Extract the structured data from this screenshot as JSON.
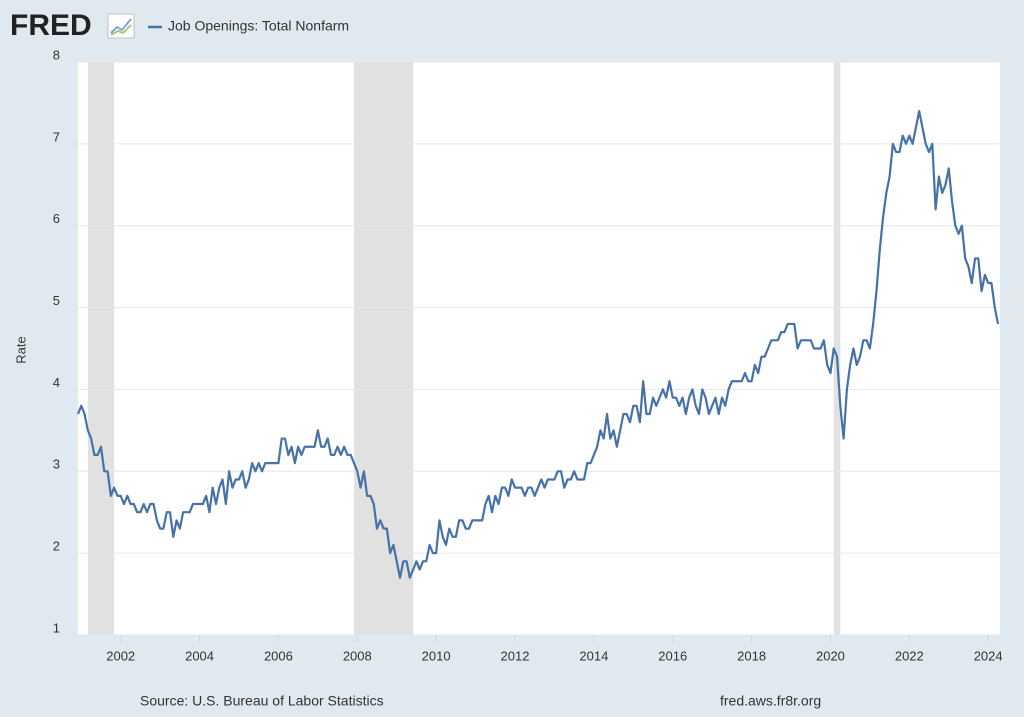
{
  "chart_data": {
    "type": "line",
    "logo": "FRED",
    "ylabel": "Rate",
    "source": "Source: U.S. Bureau of Labor Statistics",
    "site": "fred.aws.fr8r.org",
    "xlim": [
      2000.917,
      2024.3
    ],
    "xticks": [
      2002,
      2004,
      2006,
      2008,
      2010,
      2012,
      2014,
      2016,
      2018,
      2020,
      2022,
      2024
    ],
    "ylim": [
      1,
      8
    ],
    "yticks": [
      1,
      2,
      3,
      4,
      5,
      6,
      7,
      8
    ],
    "grid": true,
    "recession_color": "#e1e1e1",
    "recessions": [
      [
        2001.167,
        2001.833
      ],
      [
        2007.917,
        2009.417
      ],
      [
        2020.083,
        2020.25
      ]
    ],
    "x": [
      2000.917,
      2001,
      2001.083,
      2001.167,
      2001.25,
      2001.333,
      2001.417,
      2001.5,
      2001.583,
      2001.667,
      2001.75,
      2001.833,
      2001.917,
      2002,
      2002.083,
      2002.167,
      2002.25,
      2002.333,
      2002.417,
      2002.5,
      2002.583,
      2002.667,
      2002.75,
      2002.833,
      2002.917,
      2003,
      2003.083,
      2003.167,
      2003.25,
      2003.333,
      2003.417,
      2003.5,
      2003.583,
      2003.667,
      2003.75,
      2003.833,
      2003.917,
      2004,
      2004.083,
      2004.167,
      2004.25,
      2004.333,
      2004.417,
      2004.5,
      2004.583,
      2004.667,
      2004.75,
      2004.833,
      2004.917,
      2005,
      2005.083,
      2005.167,
      2005.25,
      2005.333,
      2005.417,
      2005.5,
      2005.583,
      2005.667,
      2005.75,
      2005.833,
      2005.917,
      2006,
      2006.083,
      2006.167,
      2006.25,
      2006.333,
      2006.417,
      2006.5,
      2006.583,
      2006.667,
      2006.75,
      2006.833,
      2006.917,
      2007,
      2007.083,
      2007.167,
      2007.25,
      2007.333,
      2007.417,
      2007.5,
      2007.583,
      2007.667,
      2007.75,
      2007.833,
      2007.917,
      2008,
      2008.083,
      2008.167,
      2008.25,
      2008.333,
      2008.417,
      2008.5,
      2008.583,
      2008.667,
      2008.75,
      2008.833,
      2008.917,
      2009,
      2009.083,
      2009.167,
      2009.25,
      2009.333,
      2009.417,
      2009.5,
      2009.583,
      2009.667,
      2009.75,
      2009.833,
      2009.917,
      2010,
      2010.083,
      2010.167,
      2010.25,
      2010.333,
      2010.417,
      2010.5,
      2010.583,
      2010.667,
      2010.75,
      2010.833,
      2010.917,
      2011,
      2011.083,
      2011.167,
      2011.25,
      2011.333,
      2011.417,
      2011.5,
      2011.583,
      2011.667,
      2011.75,
      2011.833,
      2011.917,
      2012,
      2012.083,
      2012.167,
      2012.25,
      2012.333,
      2012.417,
      2012.5,
      2012.583,
      2012.667,
      2012.75,
      2012.833,
      2012.917,
      2013,
      2013.083,
      2013.167,
      2013.25,
      2013.333,
      2013.417,
      2013.5,
      2013.583,
      2013.667,
      2013.75,
      2013.833,
      2013.917,
      2014,
      2014.083,
      2014.167,
      2014.25,
      2014.333,
      2014.417,
      2014.5,
      2014.583,
      2014.667,
      2014.75,
      2014.833,
      2014.917,
      2015,
      2015.083,
      2015.167,
      2015.25,
      2015.333,
      2015.417,
      2015.5,
      2015.583,
      2015.667,
      2015.75,
      2015.833,
      2015.917,
      2016,
      2016.083,
      2016.167,
      2016.25,
      2016.333,
      2016.417,
      2016.5,
      2016.583,
      2016.667,
      2016.75,
      2016.833,
      2016.917,
      2017,
      2017.083,
      2017.167,
      2017.25,
      2017.333,
      2017.417,
      2017.5,
      2017.583,
      2017.667,
      2017.75,
      2017.833,
      2017.917,
      2018,
      2018.083,
      2018.167,
      2018.25,
      2018.333,
      2018.417,
      2018.5,
      2018.583,
      2018.667,
      2018.75,
      2018.833,
      2018.917,
      2019,
      2019.083,
      2019.167,
      2019.25,
      2019.333,
      2019.417,
      2019.5,
      2019.583,
      2019.667,
      2019.75,
      2019.833,
      2019.917,
      2020,
      2020.083,
      2020.167,
      2020.25,
      2020.333,
      2020.417,
      2020.5,
      2020.583,
      2020.667,
      2020.75,
      2020.833,
      2020.917,
      2021,
      2021.083,
      2021.167,
      2021.25,
      2021.333,
      2021.417,
      2021.5,
      2021.583,
      2021.667,
      2021.75,
      2021.833,
      2021.917,
      2022,
      2022.083,
      2022.167,
      2022.25,
      2022.333,
      2022.417,
      2022.5,
      2022.583,
      2022.667,
      2022.75,
      2022.833,
      2022.917,
      2023,
      2023.083,
      2023.167,
      2023.25,
      2023.333,
      2023.417,
      2023.5,
      2023.583,
      2023.667,
      2023.75,
      2023.833,
      2023.917,
      2024,
      2024.083,
      2024.167,
      2024.25
    ],
    "series": [
      {
        "name": "Job Openings: Total Nonfarm",
        "color": "#4572a7",
        "values": [
          3.7,
          3.8,
          3.7,
          3.5,
          3.4,
          3.2,
          3.2,
          3.3,
          3.0,
          3.0,
          2.7,
          2.8,
          2.7,
          2.7,
          2.6,
          2.7,
          2.6,
          2.6,
          2.5,
          2.5,
          2.6,
          2.5,
          2.6,
          2.6,
          2.4,
          2.3,
          2.3,
          2.5,
          2.5,
          2.2,
          2.4,
          2.3,
          2.5,
          2.5,
          2.5,
          2.6,
          2.6,
          2.6,
          2.6,
          2.7,
          2.5,
          2.8,
          2.6,
          2.8,
          2.9,
          2.6,
          3.0,
          2.8,
          2.9,
          2.9,
          3.0,
          2.8,
          2.9,
          3.1,
          3.0,
          3.1,
          3.0,
          3.1,
          3.1,
          3.1,
          3.1,
          3.1,
          3.4,
          3.4,
          3.2,
          3.3,
          3.1,
          3.3,
          3.2,
          3.3,
          3.3,
          3.3,
          3.3,
          3.5,
          3.3,
          3.3,
          3.4,
          3.2,
          3.2,
          3.3,
          3.2,
          3.3,
          3.2,
          3.2,
          3.1,
          3.0,
          2.8,
          3.0,
          2.7,
          2.7,
          2.6,
          2.3,
          2.4,
          2.3,
          2.3,
          2.0,
          2.1,
          1.9,
          1.7,
          1.9,
          1.9,
          1.7,
          1.8,
          1.9,
          1.8,
          1.9,
          1.9,
          2.1,
          2.0,
          2.0,
          2.4,
          2.2,
          2.1,
          2.3,
          2.2,
          2.2,
          2.4,
          2.4,
          2.3,
          2.3,
          2.4,
          2.4,
          2.4,
          2.4,
          2.6,
          2.7,
          2.5,
          2.7,
          2.6,
          2.8,
          2.8,
          2.7,
          2.9,
          2.8,
          2.8,
          2.8,
          2.7,
          2.8,
          2.8,
          2.7,
          2.8,
          2.9,
          2.8,
          2.9,
          2.9,
          2.9,
          3.0,
          3.0,
          2.8,
          2.9,
          2.9,
          3.0,
          2.9,
          2.9,
          2.9,
          3.1,
          3.1,
          3.2,
          3.3,
          3.5,
          3.4,
          3.7,
          3.4,
          3.5,
          3.3,
          3.5,
          3.7,
          3.7,
          3.6,
          3.8,
          3.8,
          3.6,
          4.1,
          3.7,
          3.7,
          3.9,
          3.8,
          3.9,
          4.0,
          3.9,
          4.1,
          3.9,
          3.9,
          3.8,
          3.9,
          3.7,
          3.9,
          4.0,
          3.8,
          3.7,
          4.0,
          3.9,
          3.7,
          3.8,
          3.9,
          3.7,
          3.9,
          3.8,
          4.0,
          4.1,
          4.1,
          4.1,
          4.1,
          4.2,
          4.1,
          4.1,
          4.3,
          4.2,
          4.4,
          4.4,
          4.5,
          4.6,
          4.6,
          4.6,
          4.7,
          4.7,
          4.8,
          4.8,
          4.8,
          4.5,
          4.6,
          4.6,
          4.6,
          4.6,
          4.5,
          4.5,
          4.5,
          4.6,
          4.3,
          4.2,
          4.5,
          4.4,
          3.8,
          3.4,
          4.0,
          4.3,
          4.5,
          4.3,
          4.4,
          4.6,
          4.6,
          4.5,
          4.8,
          5.2,
          5.7,
          6.1,
          6.4,
          6.6,
          7.0,
          6.9,
          6.9,
          7.1,
          7.0,
          7.1,
          7.0,
          7.2,
          7.4,
          7.2,
          7.0,
          6.9,
          7.0,
          6.2,
          6.6,
          6.4,
          6.5,
          6.7,
          6.3,
          6.0,
          5.9,
          6.0,
          5.6,
          5.5,
          5.3,
          5.6,
          5.6,
          5.2,
          5.4,
          5.3,
          5.3,
          5.0,
          4.8
        ]
      }
    ]
  }
}
